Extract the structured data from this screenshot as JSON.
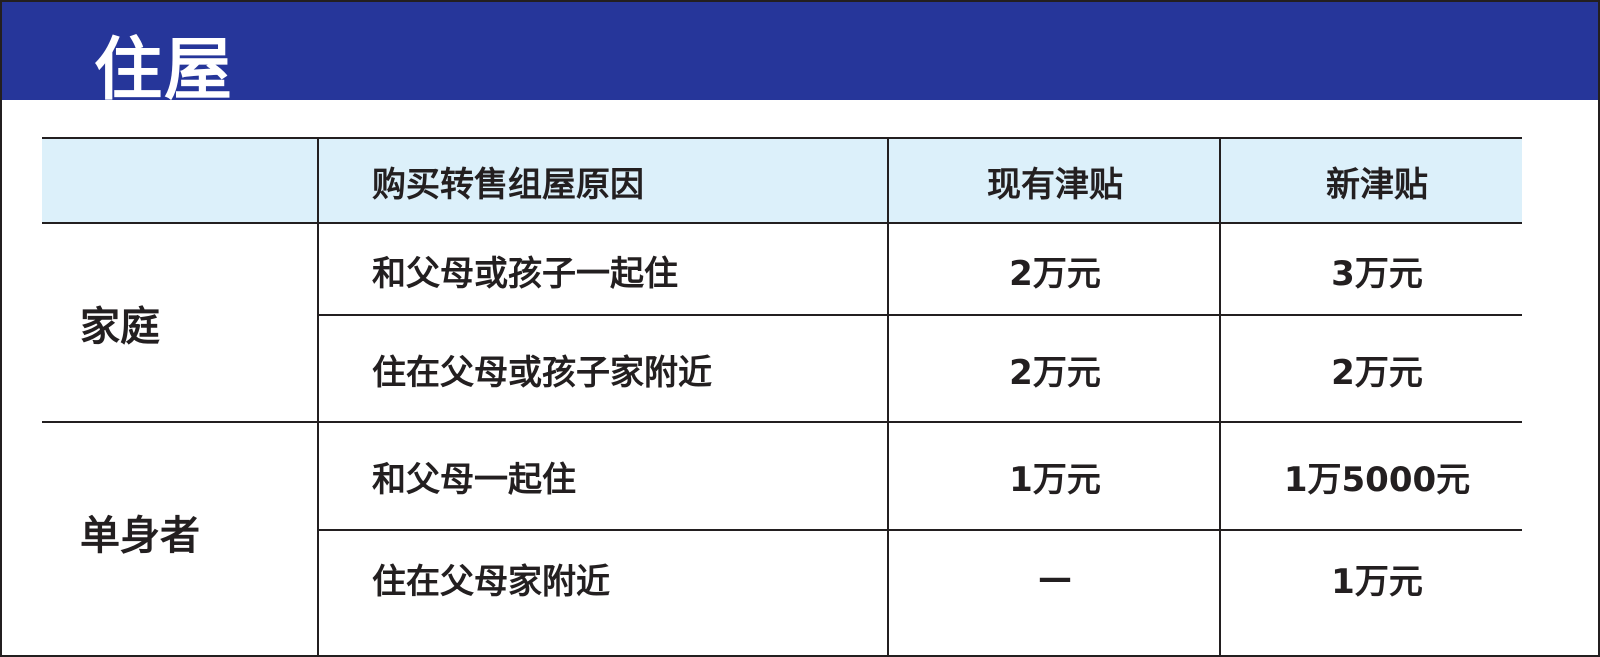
{
  "title": "住屋",
  "table": {
    "headers": [
      "",
      "购买转售组屋原因",
      "现有津贴",
      "新津贴"
    ],
    "groups": [
      {
        "label": "家庭",
        "rows": [
          {
            "reason": "和父母或孩子一起住",
            "current": "2万元",
            "new": "3万元"
          },
          {
            "reason": "住在父母或孩子家附近",
            "current": "2万元",
            "new": "2万元"
          }
        ]
      },
      {
        "label": "单身者",
        "rows": [
          {
            "reason": "和父母一起住",
            "current": "1万元",
            "new": "1万5000元"
          },
          {
            "reason": "住在父母家附近",
            "current": "—",
            "new": "1万元"
          }
        ]
      }
    ]
  },
  "colors": {
    "banner": "#26369a",
    "header_row": "#dcf0fa",
    "text": "#231f20"
  }
}
